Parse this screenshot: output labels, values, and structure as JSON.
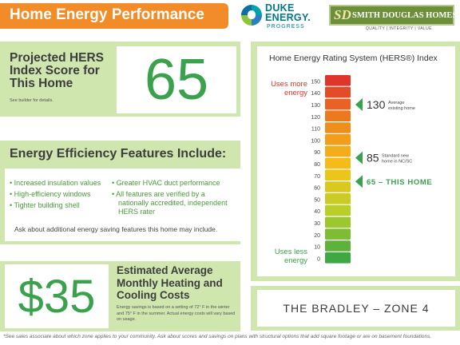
{
  "header": {
    "title": "Home Energy Performance",
    "duke_line1": "DUKE",
    "duke_line2": "ENERGY.",
    "duke_line3": "PROGRESS",
    "sd_monogram": "SD",
    "sd_name": "SMITH DOUGLAS HOMES",
    "sd_tagline": "QUALITY | INTEGRITY | VALUE"
  },
  "hers": {
    "label": "Projected HERS Index Score for This Home",
    "note": "See builder for details.",
    "score": "65"
  },
  "features": {
    "title": "Energy Efficiency Features Include:",
    "left": [
      "• Increased insulation values",
      "• High-efficiency windows",
      "• Tighter building shell"
    ],
    "right": [
      "• Greater HVAC duct performance",
      "• All features are verified by a",
      "nationally accredited, independent",
      "HERS rater"
    ],
    "note": "Ask about additional energy saving features this home may include."
  },
  "cost": {
    "value": "$35",
    "title": "Estimated Average Monthly Heating and Cooling Costs",
    "note": "Energy savings is based on a setting of 72° F in the winter and 75° F in the summer. Actual energy costs will vary based on usage."
  },
  "chart_data": {
    "type": "bar",
    "title": "Home Energy Rating System (HERS®) Index",
    "scale_values": [
      150,
      140,
      130,
      120,
      110,
      100,
      90,
      80,
      70,
      60,
      50,
      40,
      30,
      20,
      10,
      0
    ],
    "scale_labels": [
      "150",
      "140",
      "130",
      "120",
      "110",
      "100",
      "90",
      "80",
      "70",
      "60",
      "50",
      "40",
      "30",
      "20",
      "10",
      "0"
    ],
    "top_label_1": "Uses more",
    "top_label_2": "energy",
    "bottom_label_1": "Uses less",
    "bottom_label_2": "energy",
    "ylim": [
      0,
      150
    ],
    "markers": [
      {
        "value": 130,
        "number": "130",
        "caption_1": "Average",
        "caption_2": "existing home"
      },
      {
        "value": 85,
        "number": "85",
        "caption_1": "Standard new",
        "caption_2": "home in NC/SC"
      },
      {
        "value": 65,
        "number": "65 – THIS HOME",
        "caption_1": "",
        "caption_2": ""
      }
    ],
    "colors": {
      "high": "#e0352b",
      "mid_high": "#f08a1c",
      "mid": "#f5c318",
      "mid_low": "#b5cf2a",
      "low": "#3ea843",
      "marker": "#3aa14d",
      "warning_text": "#e0352b"
    }
  },
  "zone": {
    "label": "THE BRADLEY – ZONE 4"
  },
  "footnote": "*See sales associate about which zone applies to your community.  Ask about scores and savings on plans with structural options that add square footage or are on basement foundations."
}
